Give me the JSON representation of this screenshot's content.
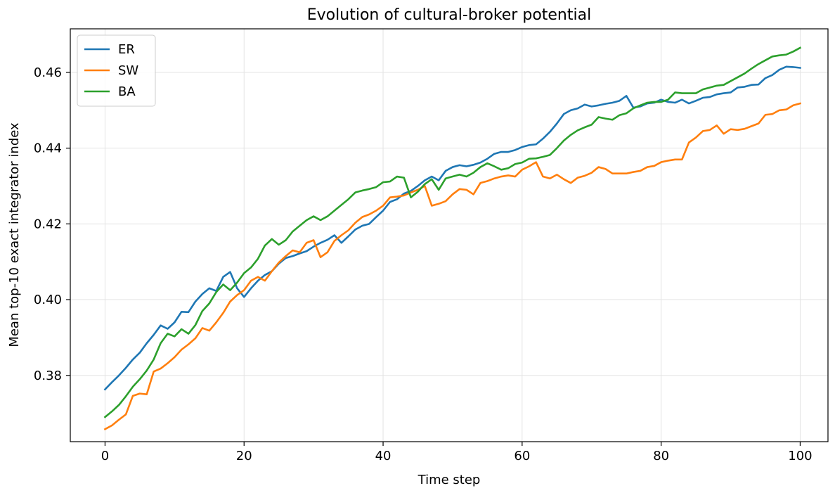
{
  "chart_data": {
    "type": "line",
    "title": "Evolution of cultural-broker potential",
    "xlabel": "Time step",
    "ylabel": "Mean top-10 exact integrator index",
    "xlim": [
      -5,
      104
    ],
    "ylim": [
      0.3625,
      0.4715
    ],
    "xticks": [
      0,
      20,
      40,
      60,
      80,
      100
    ],
    "yticks": [
      0.38,
      0.4,
      0.42,
      0.44,
      0.46
    ],
    "xtick_labels": [
      "0",
      "20",
      "40",
      "60",
      "80",
      "100"
    ],
    "ytick_labels": [
      "0.38",
      "0.40",
      "0.42",
      "0.44",
      "0.46"
    ],
    "grid": true,
    "legend_position": "top-left",
    "x": [
      0,
      1,
      2,
      3,
      4,
      5,
      6,
      7,
      8,
      9,
      10,
      11,
      12,
      13,
      14,
      15,
      16,
      17,
      18,
      19,
      20,
      21,
      22,
      23,
      24,
      25,
      26,
      27,
      28,
      29,
      30,
      31,
      32,
      33,
      34,
      35,
      36,
      37,
      38,
      39,
      40,
      41,
      42,
      43,
      44,
      45,
      46,
      47,
      48,
      49,
      50,
      51,
      52,
      53,
      54,
      55,
      56,
      57,
      58,
      59,
      60,
      61,
      62,
      63,
      64,
      65,
      66,
      67,
      68,
      69,
      70,
      71,
      72,
      73,
      74,
      75,
      76,
      77,
      78,
      79,
      80,
      81,
      82,
      83,
      84,
      85,
      86,
      87,
      88,
      89,
      90,
      91,
      92,
      93,
      94,
      95,
      96,
      97,
      98,
      99,
      100
    ],
    "series": [
      {
        "name": "ER",
        "color": "#1f77b4",
        "values": [
          0.3763,
          0.3782,
          0.38,
          0.382,
          0.3842,
          0.386,
          0.3885,
          0.3907,
          0.3932,
          0.3923,
          0.394,
          0.3968,
          0.3967,
          0.3995,
          0.4015,
          0.403,
          0.4023,
          0.406,
          0.4073,
          0.403,
          0.4007,
          0.403,
          0.405,
          0.4065,
          0.4075,
          0.4095,
          0.411,
          0.4115,
          0.4122,
          0.4128,
          0.414,
          0.415,
          0.4158,
          0.417,
          0.415,
          0.4167,
          0.4185,
          0.4195,
          0.42,
          0.4218,
          0.4235,
          0.4258,
          0.4265,
          0.428,
          0.4287,
          0.43,
          0.4315,
          0.4325,
          0.4315,
          0.434,
          0.435,
          0.4355,
          0.4352,
          0.4356,
          0.4362,
          0.4372,
          0.4385,
          0.439,
          0.439,
          0.4395,
          0.4403,
          0.4408,
          0.441,
          0.4425,
          0.4443,
          0.4465,
          0.449,
          0.45,
          0.4505,
          0.4515,
          0.451,
          0.4513,
          0.4517,
          0.452,
          0.4525,
          0.4538,
          0.4507,
          0.451,
          0.4518,
          0.452,
          0.4528,
          0.4522,
          0.452,
          0.4528,
          0.4518,
          0.4525,
          0.4533,
          0.4535,
          0.4542,
          0.4545,
          0.4547,
          0.456,
          0.4562,
          0.4567,
          0.4568,
          0.4585,
          0.4593,
          0.4607,
          0.4615,
          0.4614,
          0.4612
        ]
      },
      {
        "name": "SW",
        "color": "#ff7f0e",
        "values": [
          0.3658,
          0.3668,
          0.3683,
          0.3697,
          0.3746,
          0.3752,
          0.375,
          0.381,
          0.3818,
          0.3832,
          0.3848,
          0.3868,
          0.3882,
          0.3898,
          0.3925,
          0.3918,
          0.394,
          0.3965,
          0.3995,
          0.4012,
          0.4025,
          0.405,
          0.406,
          0.405,
          0.4075,
          0.4098,
          0.4115,
          0.413,
          0.4125,
          0.415,
          0.4157,
          0.4112,
          0.4125,
          0.4155,
          0.417,
          0.4183,
          0.4203,
          0.4218,
          0.4225,
          0.4235,
          0.4248,
          0.427,
          0.4272,
          0.4275,
          0.4283,
          0.429,
          0.43,
          0.4248,
          0.4253,
          0.426,
          0.4278,
          0.4292,
          0.429,
          0.4278,
          0.4308,
          0.4313,
          0.432,
          0.4325,
          0.4328,
          0.4325,
          0.4343,
          0.4352,
          0.4363,
          0.4325,
          0.432,
          0.433,
          0.4318,
          0.4308,
          0.4322,
          0.4327,
          0.4335,
          0.435,
          0.4345,
          0.4333,
          0.4333,
          0.4333,
          0.4337,
          0.434,
          0.435,
          0.4353,
          0.4363,
          0.4367,
          0.437,
          0.437,
          0.4415,
          0.4428,
          0.4445,
          0.4448,
          0.446,
          0.4438,
          0.445,
          0.4448,
          0.4451,
          0.4458,
          0.4465,
          0.4488,
          0.449,
          0.45,
          0.4502,
          0.4513,
          0.4518
        ]
      },
      {
        "name": "BA",
        "color": "#2ca02c",
        "values": [
          0.369,
          0.3705,
          0.3722,
          0.3745,
          0.377,
          0.379,
          0.3813,
          0.3842,
          0.3885,
          0.391,
          0.3903,
          0.3922,
          0.391,
          0.3933,
          0.397,
          0.399,
          0.402,
          0.404,
          0.4025,
          0.4045,
          0.407,
          0.4085,
          0.4108,
          0.4143,
          0.416,
          0.4145,
          0.4157,
          0.418,
          0.4195,
          0.421,
          0.422,
          0.421,
          0.422,
          0.4235,
          0.425,
          0.4265,
          0.4283,
          0.4288,
          0.4292,
          0.4297,
          0.431,
          0.4312,
          0.4325,
          0.4322,
          0.427,
          0.4285,
          0.4305,
          0.4318,
          0.429,
          0.432,
          0.4325,
          0.433,
          0.4325,
          0.4335,
          0.435,
          0.436,
          0.4352,
          0.4343,
          0.4347,
          0.4358,
          0.4362,
          0.4372,
          0.4373,
          0.4377,
          0.4382,
          0.44,
          0.442,
          0.4435,
          0.4447,
          0.4455,
          0.4462,
          0.4482,
          0.4478,
          0.4475,
          0.4487,
          0.4492,
          0.4505,
          0.4513,
          0.452,
          0.4522,
          0.4522,
          0.4528,
          0.4547,
          0.4545,
          0.4545,
          0.4545,
          0.4555,
          0.456,
          0.4565,
          0.4567,
          0.4577,
          0.4587,
          0.4597,
          0.461,
          0.4622,
          0.4632,
          0.4642,
          0.4645,
          0.4647,
          0.4655,
          0.4665
        ]
      }
    ]
  }
}
